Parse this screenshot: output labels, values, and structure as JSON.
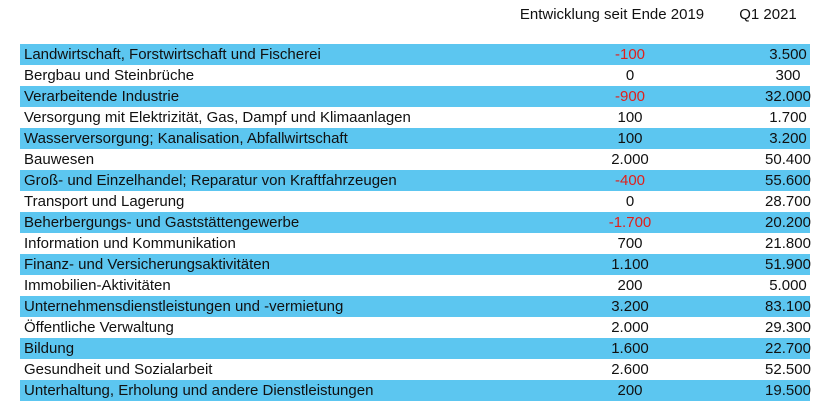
{
  "header": {
    "columns": [
      "Entwicklung seit Ende 2019",
      "Q1 2021"
    ]
  },
  "table": {
    "rows": [
      [
        "Landwirtschaft, Forstwirtschaft und Fischerei",
        "-100",
        "3.500"
      ],
      [
        "Bergbau und Steinbrüche",
        "0",
        "300"
      ],
      [
        "Verarbeitende Industrie",
        "-900",
        "32.000"
      ],
      [
        "Versorgung mit Elektrizität, Gas, Dampf und Klimaanlagen",
        "100",
        "1.700"
      ],
      [
        "Wasserversorgung; Kanalisation, Abfallwirtschaft",
        "100",
        "3.200"
      ],
      [
        "Bauwesen",
        "2.000",
        "50.400"
      ],
      [
        "Groß- und Einzelhandel; Reparatur von Kraftfahrzeugen",
        "-400",
        "55.600"
      ],
      [
        "Transport und Lagerung",
        "0",
        "28.700"
      ],
      [
        "Beherbergungs- und Gaststättengewerbe",
        "-1.700",
        "20.200"
      ],
      [
        "Information und Kommunikation",
        "700",
        "21.800"
      ],
      [
        "Finanz- und Versicherungsaktivitäten",
        "1.100",
        "51.900"
      ],
      [
        "Immobilien-Aktivitäten",
        "200",
        "5.000"
      ],
      [
        "Unternehmensdienstleistungen und -vermietung",
        "3.200",
        "83.100"
      ],
      [
        "Öffentliche Verwaltung",
        "2.000",
        "29.300"
      ],
      [
        "Bildung",
        "1.600",
        "22.700"
      ],
      [
        "Gesundheit und Sozialarbeit",
        "2.600",
        "52.500"
      ],
      [
        "Unterhaltung, Erholung und andere Dienstleistungen",
        "200",
        "19.500"
      ]
    ]
  }
}
